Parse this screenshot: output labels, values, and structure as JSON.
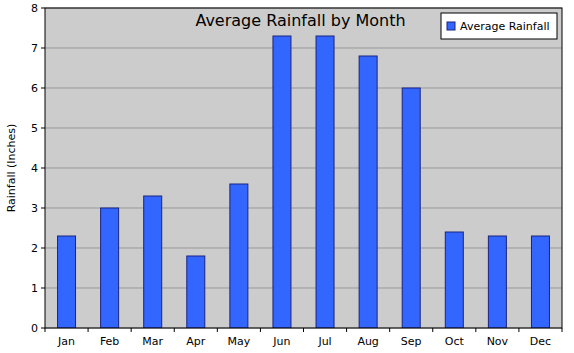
{
  "chart_data": {
    "type": "bar",
    "title": "Average Rainfall by Month",
    "ylabel": "Rainfall (Inches)",
    "categories": [
      "Jan",
      "Feb",
      "Mar",
      "Apr",
      "May",
      "Jun",
      "Jul",
      "Aug",
      "Sep",
      "Oct",
      "Nov",
      "Dec"
    ],
    "series": [
      {
        "name": "Average Rainfall",
        "color": "#3366ff",
        "values": [
          2.3,
          3.0,
          3.3,
          1.8,
          3.6,
          7.3,
          7.3,
          6.8,
          6.0,
          2.4,
          2.3,
          2.3
        ]
      }
    ],
    "ylim": [
      0,
      8
    ],
    "yticks": [
      0,
      1,
      2,
      3,
      4,
      5,
      6,
      7,
      8
    ],
    "grid": true,
    "legend": "upper right"
  }
}
